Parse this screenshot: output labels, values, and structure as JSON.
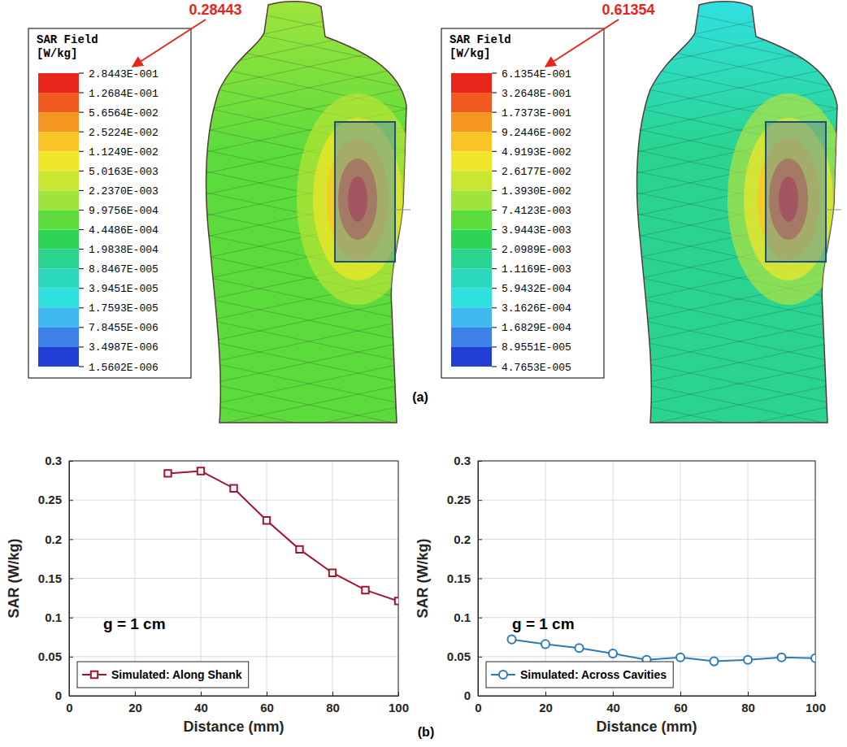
{
  "chart_data": [
    {
      "type": "color_map",
      "title": "SAR Field",
      "subtitle": "[W/kg]",
      "annotation": "0.28443",
      "log": true,
      "colorbar": {
        "range": [
          1.5602e-06,
          0.28443
        ],
        "ticks": [
          {
            "value": 0.28443,
            "label": "2.8443E-001"
          },
          {
            "value": 0.12684,
            "label": "1.2684E-001"
          },
          {
            "value": 0.056564,
            "label": "5.6564E-002"
          },
          {
            "value": 0.025224,
            "label": "2.5224E-002"
          },
          {
            "value": 0.011249,
            "label": "1.1249E-002"
          },
          {
            "value": 0.0050163,
            "label": "5.0163E-003"
          },
          {
            "value": 0.002237,
            "label": "2.2370E-003"
          },
          {
            "value": 0.00099756,
            "label": "9.9756E-004"
          },
          {
            "value": 0.00044486,
            "label": "4.4486E-004"
          },
          {
            "value": 0.00019838,
            "label": "1.9838E-004"
          },
          {
            "value": 8.8467e-05,
            "label": "8.8467E-005"
          },
          {
            "value": 3.9451e-05,
            "label": "3.9451E-005"
          },
          {
            "value": 1.7593e-05,
            "label": "1.7593E-005"
          },
          {
            "value": 7.8455e-06,
            "label": "7.8455E-006"
          },
          {
            "value": 3.4987e-06,
            "label": "3.4987E-006"
          },
          {
            "value": 1.5602e-06,
            "label": "1.5602E-006"
          }
        ],
        "colors": [
          "#e8251a",
          "#f05a1e",
          "#f59622",
          "#f8c426",
          "#f2e62a",
          "#c8e632",
          "#9ee43c",
          "#5cdc3c",
          "#2ed454",
          "#2ad490",
          "#2cd8bc",
          "#30e0e0",
          "#40b8f0",
          "#3c80e8",
          "#2040d8"
        ]
      }
    },
    {
      "type": "color_map",
      "title": "SAR Field",
      "subtitle": "[W/kg]",
      "annotation": "0.61354",
      "log": true,
      "colorbar": {
        "range": [
          4.7653e-05,
          0.61354
        ],
        "ticks": [
          {
            "value": 0.61354,
            "label": "6.1354E-001"
          },
          {
            "value": 0.32648,
            "label": "3.2648E-001"
          },
          {
            "value": 0.17373,
            "label": "1.7373E-001"
          },
          {
            "value": 0.092446,
            "label": "9.2446E-002"
          },
          {
            "value": 0.049193,
            "label": "4.9193E-002"
          },
          {
            "value": 0.026177,
            "label": "2.6177E-002"
          },
          {
            "value": 0.01393,
            "label": "1.3930E-002"
          },
          {
            "value": 0.0074123,
            "label": "7.4123E-003"
          },
          {
            "value": 0.0039443,
            "label": "3.9443E-003"
          },
          {
            "value": 0.0020989,
            "label": "2.0989E-003"
          },
          {
            "value": 0.0011169,
            "label": "1.1169E-003"
          },
          {
            "value": 0.00059432,
            "label": "5.9432E-004"
          },
          {
            "value": 0.00031626,
            "label": "3.1626E-004"
          },
          {
            "value": 0.00016829,
            "label": "1.6829E-004"
          },
          {
            "value": 8.9551e-05,
            "label": "8.9551E-005"
          },
          {
            "value": 4.7653e-05,
            "label": "4.7653E-005"
          }
        ],
        "colors": [
          "#e8251a",
          "#f05a1e",
          "#f59622",
          "#f8c426",
          "#f2e62a",
          "#c8e632",
          "#9ee43c",
          "#5cdc3c",
          "#2ed454",
          "#2ad490",
          "#2cd8bc",
          "#30e0e0",
          "#40b8f0",
          "#3c80e8",
          "#2040d8"
        ]
      }
    },
    {
      "type": "line",
      "x": [
        30,
        40,
        50,
        60,
        70,
        80,
        90,
        100
      ],
      "series": [
        {
          "name": "Simulated: Along Shank",
          "color": "#a2142f",
          "marker": "square",
          "line_style": "solid",
          "values": [
            0.284,
            0.287,
            0.265,
            0.224,
            0.187,
            0.157,
            0.135,
            0.121
          ]
        }
      ],
      "xlim": [
        0,
        100
      ],
      "xticks": [
        0,
        20,
        40,
        60,
        80,
        100
      ],
      "ylim": [
        0,
        0.3
      ],
      "yticks": [
        0,
        0.05,
        0.1,
        0.15,
        0.2,
        0.25,
        0.3
      ],
      "x_label": "Distance (mm)",
      "y_label": "SAR (W/kg)",
      "annotation": "g = 1 cm",
      "grid": true,
      "legend": "lower left"
    },
    {
      "type": "line",
      "x": [
        10,
        20,
        30,
        40,
        50,
        60,
        70,
        80,
        90,
        100
      ],
      "series": [
        {
          "name": "Simulated: Across Cavities",
          "color": "#2b7bba",
          "marker": "circle",
          "line_style": "solid",
          "values": [
            0.072,
            0.066,
            0.061,
            0.054,
            0.046,
            0.049,
            0.044,
            0.046,
            0.049,
            0.048
          ]
        }
      ],
      "xlim": [
        0,
        100
      ],
      "xticks": [
        0,
        20,
        40,
        60,
        80,
        100
      ],
      "ylim": [
        0,
        0.3
      ],
      "yticks": [
        0,
        0.05,
        0.1,
        0.15,
        0.2,
        0.25,
        0.3
      ],
      "x_label": "Distance (mm)",
      "y_label": "SAR (W/kg)",
      "annotation": "g = 1 cm",
      "grid": true,
      "legend": "lower left"
    }
  ],
  "panel_labels": [
    "(a)",
    "(b)"
  ]
}
